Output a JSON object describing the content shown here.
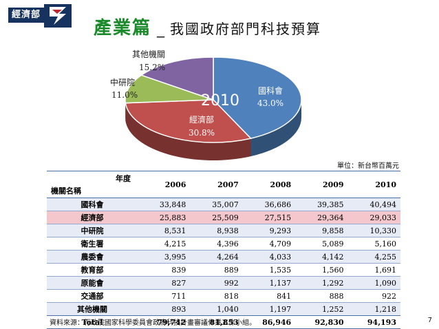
{
  "header": {
    "logo_text": "經濟部",
    "title_main": "產業篇",
    "title_sep": "_",
    "title_sub": "我國政府部門科技預算"
  },
  "chart_data": [
    {
      "type": "pie",
      "center_label": "2010",
      "slices": [
        {
          "name": "國科會",
          "pct_label": "43.0%",
          "value": 43.0,
          "color": "#4f81bd"
        },
        {
          "name": "經濟部",
          "pct_label": "30.8%",
          "value": 30.8,
          "color": "#c0504d"
        },
        {
          "name": "中研院",
          "pct_label": "11.0%",
          "value": 11.0,
          "color": "#9bbb59"
        },
        {
          "name": "其他機關",
          "pct_label": "15.2%",
          "value": 15.2,
          "color": "#8064a2"
        }
      ]
    },
    {
      "type": "table",
      "unit": "單位：新台幣百萬元",
      "header_year": "年度",
      "header_agency": "機關名稱",
      "years": [
        "2006",
        "2007",
        "2008",
        "2009",
        "2010"
      ],
      "rows": [
        {
          "name": "國科會",
          "values": [
            "33,848",
            "35,007",
            "36,686",
            "39,385",
            "40,494"
          ]
        },
        {
          "name": "經濟部",
          "values": [
            "25,883",
            "25,509",
            "27,515",
            "29,364",
            "29,033"
          ]
        },
        {
          "name": "中研院",
          "values": [
            "8,531",
            "8,938",
            "9,293",
            "9,858",
            "10,330"
          ]
        },
        {
          "name": "衛生署",
          "values": [
            "4,215",
            "4,396",
            "4,709",
            "5,089",
            "5,160"
          ]
        },
        {
          "name": "農委會",
          "values": [
            "3,995",
            "4,264",
            "4,033",
            "4,142",
            "4,255"
          ]
        },
        {
          "name": "教育部",
          "values": [
            "839",
            "889",
            "1,535",
            "1,560",
            "1,691"
          ]
        },
        {
          "name": "原能會",
          "values": [
            "827",
            "992",
            "1,137",
            "1,292",
            "1,090"
          ]
        },
        {
          "name": "交通部",
          "values": [
            "711",
            "818",
            "841",
            "888",
            "922"
          ]
        },
        {
          "name": "其他機關",
          "values": [
            "893",
            "1,040",
            "1,197",
            "1,252",
            "1,218"
          ]
        }
      ],
      "total": {
        "name": "Total",
        "values": [
          "79,742",
          "81,853",
          "86,946",
          "92,830",
          "94,193"
        ]
      }
    }
  ],
  "footer": {
    "source": "資料來源：行政院國家科學委員會政府科技計畫審議作業工作小組。",
    "page_number": "7"
  }
}
